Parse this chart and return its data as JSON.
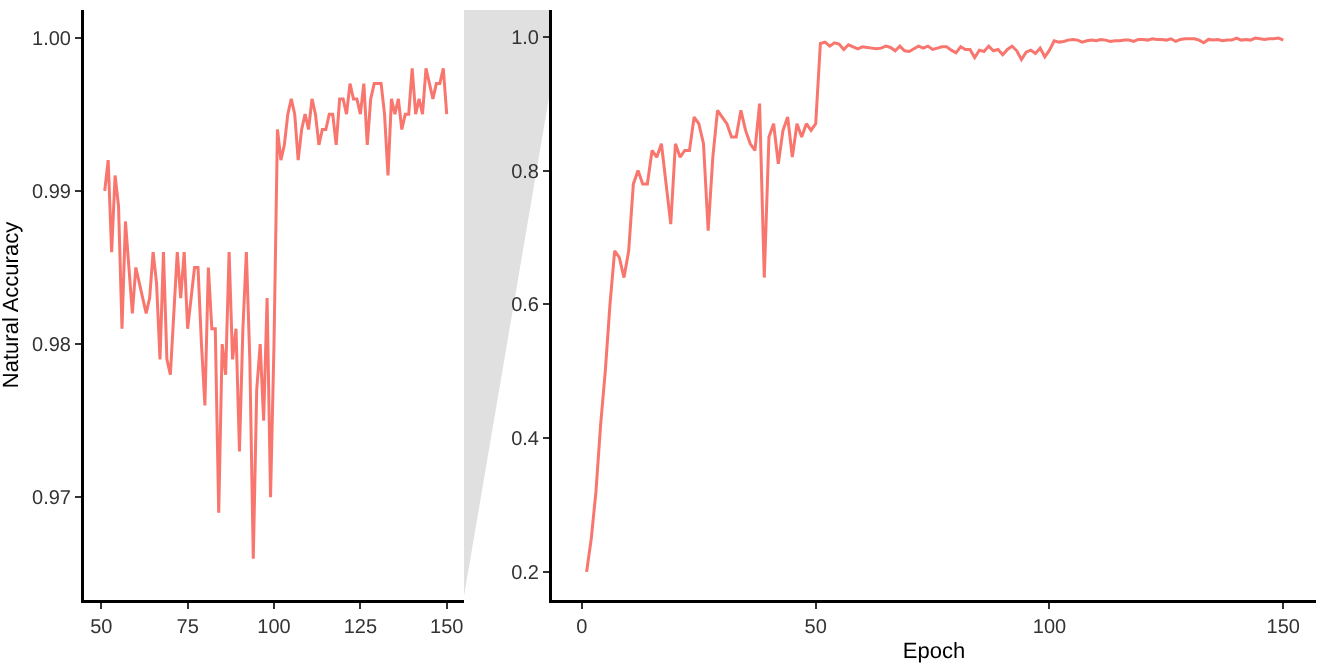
{
  "chart_data": [
    {
      "type": "line",
      "ylabel": "Natural Accuracy",
      "grid": false,
      "marker": "none",
      "line_style": "solid",
      "xlim": [
        45,
        155
      ],
      "ylim": [
        0.9633,
        1.0018
      ],
      "xticks": [
        50,
        75,
        100,
        125,
        150
      ],
      "yticks": [
        0.97,
        0.98,
        0.99,
        {
          "value": 1.0,
          "label": "1.00"
        }
      ],
      "x": [
        51,
        52,
        53,
        54,
        55,
        56,
        57,
        58,
        59,
        60,
        61,
        62,
        63,
        64,
        65,
        66,
        67,
        68,
        69,
        70,
        71,
        72,
        73,
        74,
        75,
        76,
        77,
        78,
        79,
        80,
        81,
        82,
        83,
        84,
        85,
        86,
        87,
        88,
        89,
        90,
        91,
        92,
        93,
        94,
        95,
        96,
        97,
        98,
        99,
        100,
        101,
        102,
        103,
        104,
        105,
        106,
        107,
        108,
        109,
        110,
        111,
        112,
        113,
        114,
        115,
        116,
        117,
        118,
        119,
        120,
        121,
        122,
        123,
        124,
        125,
        126,
        127,
        128,
        129,
        130,
        131,
        132,
        133,
        134,
        135,
        136,
        137,
        138,
        139,
        140,
        141,
        142,
        143,
        144,
        145,
        146,
        147,
        148,
        149,
        150
      ],
      "series": [
        {
          "color": "#f8766d",
          "values": [
            0.99,
            0.992,
            0.986,
            0.991,
            0.989,
            0.981,
            0.988,
            0.985,
            0.982,
            0.985,
            0.984,
            0.983,
            0.982,
            0.983,
            0.986,
            0.984,
            0.979,
            0.986,
            0.979,
            0.978,
            0.982,
            0.986,
            0.983,
            0.986,
            0.981,
            0.983,
            0.985,
            0.985,
            0.98,
            0.976,
            0.985,
            0.981,
            0.981,
            0.969,
            0.98,
            0.978,
            0.986,
            0.979,
            0.981,
            0.973,
            0.981,
            0.986,
            0.979,
            0.966,
            0.977,
            0.98,
            0.975,
            0.983,
            0.97,
            0.98,
            0.994,
            0.992,
            0.993,
            0.995,
            0.996,
            0.995,
            0.992,
            0.994,
            0.995,
            0.994,
            0.996,
            0.995,
            0.993,
            0.994,
            0.994,
            0.995,
            0.995,
            0.993,
            0.996,
            0.996,
            0.995,
            0.997,
            0.996,
            0.996,
            0.995,
            0.997,
            0.993,
            0.996,
            0.997,
            0.997,
            0.997,
            0.995,
            0.991,
            0.996,
            0.995,
            0.996,
            0.994,
            0.995,
            0.995,
            0.998,
            0.995,
            0.996,
            0.995,
            0.998,
            0.997,
            0.996,
            0.997,
            0.997,
            0.998,
            0.995
          ]
        }
      ]
    },
    {
      "type": "line",
      "xlabel": "Epoch",
      "grid": false,
      "marker": "none",
      "line_style": "solid",
      "xlim": [
        -6.4,
        157
      ],
      "ylim": [
        0.158,
        1.04
      ],
      "xticks": [
        0,
        50,
        100,
        150
      ],
      "yticks": [
        0.2,
        0.4,
        0.6,
        0.8,
        {
          "value": 1.0,
          "label": "1.0"
        }
      ],
      "x": [
        1,
        2,
        3,
        4,
        5,
        6,
        7,
        8,
        9,
        10,
        11,
        12,
        13,
        14,
        15,
        16,
        17,
        18,
        19,
        20,
        21,
        22,
        23,
        24,
        25,
        26,
        27,
        28,
        29,
        30,
        31,
        32,
        33,
        34,
        35,
        36,
        37,
        38,
        39,
        40,
        41,
        42,
        43,
        44,
        45,
        46,
        47,
        48,
        49,
        50,
        51,
        52,
        53,
        54,
        55,
        56,
        57,
        58,
        59,
        60,
        61,
        62,
        63,
        64,
        65,
        66,
        67,
        68,
        69,
        70,
        71,
        72,
        73,
        74,
        75,
        76,
        77,
        78,
        79,
        80,
        81,
        82,
        83,
        84,
        85,
        86,
        87,
        88,
        89,
        90,
        91,
        92,
        93,
        94,
        95,
        96,
        97,
        98,
        99,
        100,
        101,
        102,
        103,
        104,
        105,
        106,
        107,
        108,
        109,
        110,
        111,
        112,
        113,
        114,
        115,
        116,
        117,
        118,
        119,
        120,
        121,
        122,
        123,
        124,
        125,
        126,
        127,
        128,
        129,
        130,
        131,
        132,
        133,
        134,
        135,
        136,
        137,
        138,
        139,
        140,
        141,
        142,
        143,
        144,
        145,
        146,
        147,
        148,
        149,
        150
      ],
      "series": [
        {
          "color": "#f8766d",
          "values": [
            0.2,
            0.25,
            0.32,
            0.42,
            0.5,
            0.6,
            0.68,
            0.67,
            0.64,
            0.68,
            0.78,
            0.8,
            0.78,
            0.78,
            0.83,
            0.82,
            0.84,
            0.78,
            0.72,
            0.84,
            0.82,
            0.83,
            0.83,
            0.88,
            0.87,
            0.84,
            0.71,
            0.82,
            0.89,
            0.88,
            0.87,
            0.85,
            0.85,
            0.89,
            0.86,
            0.84,
            0.83,
            0.9,
            0.64,
            0.85,
            0.87,
            0.81,
            0.86,
            0.88,
            0.82,
            0.87,
            0.85,
            0.87,
            0.86,
            0.87,
            0.99,
            0.992,
            0.986,
            0.991,
            0.989,
            0.981,
            0.988,
            0.985,
            0.982,
            0.985,
            0.984,
            0.983,
            0.982,
            0.983,
            0.986,
            0.984,
            0.979,
            0.986,
            0.979,
            0.978,
            0.982,
            0.986,
            0.983,
            0.986,
            0.981,
            0.983,
            0.985,
            0.985,
            0.98,
            0.976,
            0.985,
            0.981,
            0.981,
            0.969,
            0.98,
            0.978,
            0.986,
            0.979,
            0.981,
            0.973,
            0.981,
            0.986,
            0.979,
            0.966,
            0.977,
            0.98,
            0.975,
            0.983,
            0.97,
            0.98,
            0.994,
            0.992,
            0.993,
            0.995,
            0.996,
            0.995,
            0.992,
            0.994,
            0.995,
            0.994,
            0.996,
            0.995,
            0.993,
            0.994,
            0.994,
            0.995,
            0.995,
            0.993,
            0.996,
            0.996,
            0.995,
            0.997,
            0.996,
            0.996,
            0.995,
            0.997,
            0.993,
            0.996,
            0.997,
            0.997,
            0.997,
            0.995,
            0.991,
            0.996,
            0.995,
            0.996,
            0.994,
            0.995,
            0.995,
            0.998,
            0.995,
            0.996,
            0.995,
            0.998,
            0.997,
            0.996,
            0.997,
            0.997,
            0.998,
            0.995
          ]
        }
      ]
    }
  ]
}
